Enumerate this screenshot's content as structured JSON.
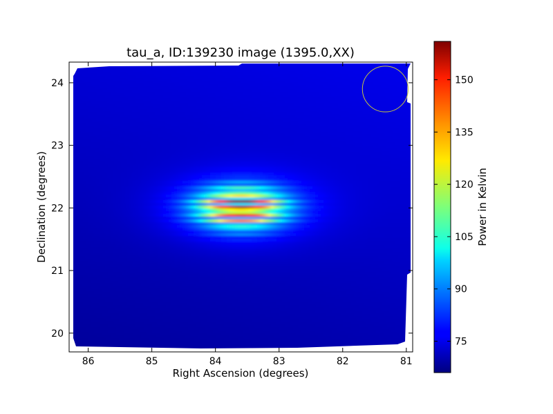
{
  "chart_data": {
    "type": "heatmap",
    "title": "tau_a, ID:139230 image (1395.0,XX)",
    "xlabel": "Right Ascension (degrees)",
    "ylabel": "Declination (degrees)",
    "colorbar_label": "Power in Kelvin",
    "xlim": [
      86.3,
      80.9
    ],
    "ylim": [
      19.7,
      24.33
    ],
    "x_ticks": [
      {
        "value": 86,
        "label": "86"
      },
      {
        "value": 85,
        "label": "85"
      },
      {
        "value": 84,
        "label": "84"
      },
      {
        "value": 83,
        "label": "83"
      },
      {
        "value": 82,
        "label": "82"
      },
      {
        "value": 81,
        "label": "81"
      }
    ],
    "y_ticks": [
      {
        "value": 20,
        "label": "20"
      },
      {
        "value": 21,
        "label": "21"
      },
      {
        "value": 22,
        "label": "22"
      },
      {
        "value": 23,
        "label": "23"
      },
      {
        "value": 24,
        "label": "24"
      }
    ],
    "colorbar_range": [
      66,
      161
    ],
    "colorbar_ticks": [
      {
        "value": 75,
        "label": "75"
      },
      {
        "value": 90,
        "label": "90"
      },
      {
        "value": 105,
        "label": "105"
      },
      {
        "value": 120,
        "label": "120"
      },
      {
        "value": 135,
        "label": "135"
      },
      {
        "value": 150,
        "label": "150"
      }
    ],
    "colormap": "jet",
    "source": {
      "ra": 83.6,
      "dec": 22.0,
      "peak": 158
    },
    "background_level": 73,
    "beam_marker": {
      "ra": 81.33,
      "dec": 23.9,
      "radius_deg": 0.36,
      "color": "#c8c83c"
    },
    "grid": false
  }
}
